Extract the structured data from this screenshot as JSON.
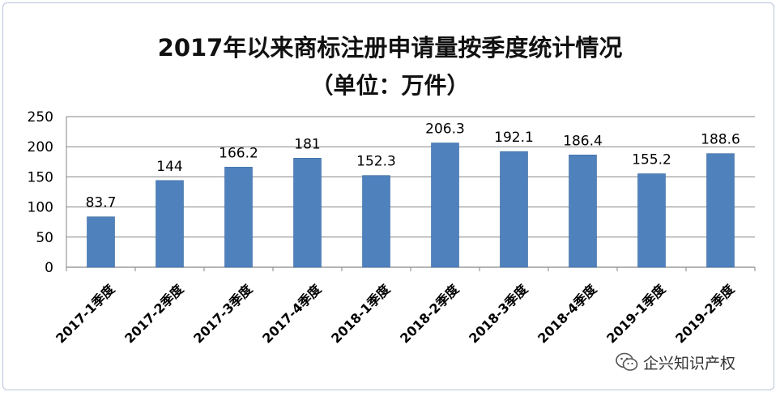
{
  "chart_data": {
    "type": "bar",
    "title": "2017年以来商标注册申请量按季度统计情况",
    "subtitle": "（单位：万件）",
    "categories": [
      "2017-1季度",
      "2017-2季度",
      "2017-3季度",
      "2017-4季度",
      "2018-1季度",
      "2018-2季度",
      "2018-3季度",
      "2018-4季度",
      "2019-1季度",
      "2019-2季度"
    ],
    "values": [
      83.7,
      144,
      166.2,
      181,
      152.3,
      206.3,
      192.1,
      186.4,
      155.2,
      188.6
    ],
    "value_labels": [
      "83.7",
      "144",
      "166.2",
      "181",
      "152.3",
      "206.3",
      "192.1",
      "186.4",
      "155.2",
      "188.6"
    ],
    "ylim": [
      0,
      250
    ],
    "yticks": [
      0,
      50,
      100,
      150,
      200,
      250
    ],
    "grid": true,
    "legend": "none",
    "bar_color": "#4f81bd",
    "grid_color": "#868686"
  },
  "watermark": {
    "text": "企兴知识产权"
  }
}
